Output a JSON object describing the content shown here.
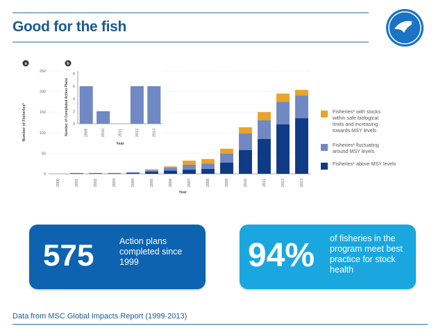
{
  "slide": {
    "title": "Good for the fish",
    "footnote": "Data from MSC Global Impacts Report (1999-2013)"
  },
  "stats": [
    {
      "value": "575",
      "text": "Action plans completed since 1999",
      "color": "#0d63b0"
    },
    {
      "value": "94%",
      "text": "of fisheries in the program meet best practice for stock health",
      "color": "#1aa7e0"
    }
  ],
  "colors": {
    "brand": "#1b5a8f",
    "above_msy": "#0e3a86",
    "fluctuating": "#7088c4",
    "increasing": "#e8a52a",
    "inset_bars": "#7088c4",
    "card_dark": "#0d63b0",
    "card_light": "#1aa7e0"
  },
  "chart_data": [
    {
      "panel_label": "a",
      "type": "bar",
      "stacked": true,
      "ylabel": "Number of Fisheries*",
      "xlabel": "Year",
      "ylim": [
        0,
        250
      ],
      "yticks": [
        "0",
        "50",
        "100",
        "150",
        "200",
        "250"
      ],
      "categories": [
        "2000",
        "2001",
        "2002",
        "2003",
        "2004",
        "2005",
        "2006",
        "2007",
        "2008",
        "2009",
        "2010",
        "2011",
        "2012",
        "2013"
      ],
      "series": [
        {
          "name": "Fisheries* above MSY levels",
          "color": "#0e3a86",
          "values": [
            0,
            1,
            1,
            1,
            2,
            5,
            8,
            10,
            12,
            27,
            58,
            85,
            120,
            135
          ]
        },
        {
          "name": "Fisheries* fluctuating around MSY levels",
          "color": "#7088c4",
          "values": [
            0,
            1,
            1,
            1,
            2,
            4,
            7,
            12,
            13,
            22,
            40,
            45,
            55,
            55
          ]
        },
        {
          "name": "Fisheries* with stocks within safe biological limits and increasing towards MSY levels",
          "color": "#e8a52a",
          "values": [
            0,
            0,
            0,
            0,
            0,
            2,
            3,
            10,
            11,
            12,
            15,
            20,
            20,
            14
          ]
        }
      ]
    },
    {
      "panel_label": "b",
      "type": "bar",
      "ylabel": "Number of Completed Action Plans",
      "xlabel": "Year",
      "ylim": [
        0,
        8
      ],
      "yticks": [
        "0",
        "2",
        "4",
        "6",
        "8"
      ],
      "categories": [
        "2009",
        "2010",
        "2011",
        "2012",
        "2013"
      ],
      "values": [
        6,
        2,
        0,
        6,
        6
      ]
    }
  ]
}
